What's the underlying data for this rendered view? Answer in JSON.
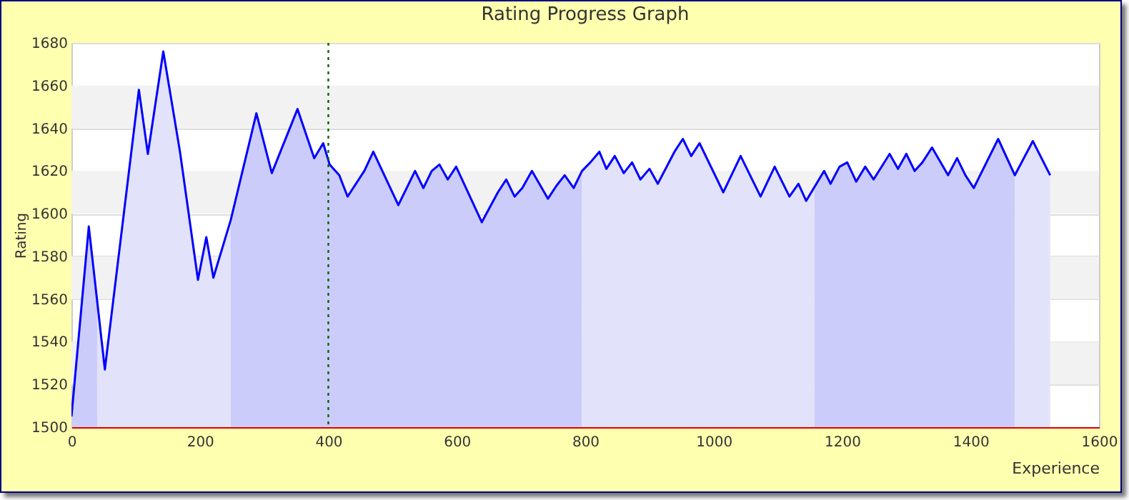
{
  "chart_data": {
    "type": "line",
    "title": "Rating Progress Graph",
    "xlabel": "Experience",
    "ylabel": "Rating",
    "xlim": [
      0,
      1600
    ],
    "xticks": [
      0,
      200,
      400,
      600,
      800,
      1000,
      1200,
      1400,
      1600
    ],
    "ylim": [
      1500,
      1680
    ],
    "yticks": [
      1500,
      1520,
      1540,
      1560,
      1580,
      1600,
      1620,
      1640,
      1660,
      1680
    ],
    "grid": "y",
    "marker": "none",
    "line_style": "solid",
    "ref_lines": [
      {
        "axis": "x",
        "value": 400,
        "color": "#006600",
        "line_style": "dotted"
      }
    ],
    "series": [
      {
        "type": "area",
        "color": "#ccccfa",
        "x": [
          0,
          27,
          40
        ],
        "values": [
          1505,
          1594,
          1559
        ]
      },
      {
        "type": "area",
        "color": "#e2e2fa",
        "x": [
          40,
          52,
          105,
          119,
          143,
          169,
          197,
          210,
          221,
          248
        ],
        "values": [
          1559,
          1527,
          1658,
          1628,
          1676,
          1629,
          1569,
          1589,
          1570,
          1597
        ]
      },
      {
        "type": "area",
        "color": "#ccccfa",
        "x": [
          248,
          288,
          312,
          352,
          378,
          392,
          402,
          417,
          430,
          456,
          470,
          509,
          535,
          548,
          561,
          573,
          586,
          599,
          639,
          664,
          677,
          690,
          702,
          717,
          742,
          755,
          768,
          782,
          795
        ],
        "values": [
          1597,
          1647,
          1619,
          1649,
          1626,
          1633,
          1623,
          1618,
          1608,
          1620,
          1629,
          1604,
          1620,
          1612,
          1620,
          1623,
          1616,
          1622,
          1596,
          1610,
          1616,
          1608,
          1612,
          1620,
          1607,
          1613,
          1618,
          1612,
          1620
        ]
      },
      {
        "type": "area",
        "color": "#e2e2fa",
        "x": [
          795,
          808,
          822,
          833,
          846,
          860,
          873,
          886,
          900,
          913,
          939,
          952,
          965,
          978,
          1015,
          1042,
          1073,
          1095,
          1118,
          1132,
          1144,
          1157
        ],
        "values": [
          1620,
          1624,
          1629,
          1621,
          1627,
          1619,
          1624,
          1616,
          1621,
          1614,
          1629,
          1635,
          1627,
          1633,
          1610,
          1627,
          1608,
          1622,
          1608,
          1614,
          1606,
          1612
        ]
      },
      {
        "type": "area",
        "color": "#ccccfa",
        "x": [
          1157,
          1172,
          1182,
          1196,
          1208,
          1222,
          1236,
          1249,
          1274,
          1287,
          1300,
          1313,
          1325,
          1340,
          1365,
          1379,
          1392,
          1405,
          1443,
          1469
        ],
        "values": [
          1612,
          1620,
          1614,
          1622,
          1624,
          1615,
          1622,
          1616,
          1628,
          1621,
          1628,
          1620,
          1624,
          1631,
          1618,
          1626,
          1618,
          1612,
          1635,
          1618
        ]
      },
      {
        "type": "area",
        "color": "#e2e2fa",
        "x": [
          1469,
          1497,
          1524
        ],
        "values": [
          1618,
          1634,
          1618
        ]
      },
      {
        "type": "line",
        "color": "#0000ff",
        "x": [
          0,
          27,
          52,
          105,
          119,
          143,
          169,
          197,
          210,
          221,
          248,
          288,
          312,
          352,
          378,
          392,
          402,
          417,
          430,
          456,
          470,
          509,
          535,
          548,
          561,
          573,
          586,
          599,
          639,
          664,
          677,
          690,
          702,
          717,
          742,
          755,
          768,
          782,
          795,
          808,
          822,
          833,
          846,
          860,
          873,
          886,
          900,
          913,
          939,
          952,
          965,
          978,
          1015,
          1042,
          1073,
          1095,
          1118,
          1132,
          1144,
          1172,
          1182,
          1196,
          1208,
          1222,
          1236,
          1249,
          1274,
          1287,
          1300,
          1313,
          1325,
          1340,
          1365,
          1379,
          1392,
          1405,
          1443,
          1469,
          1497,
          1524
        ],
        "values": [
          1505,
          1594,
          1527,
          1658,
          1628,
          1676,
          1629,
          1569,
          1589,
          1570,
          1597,
          1647,
          1619,
          1649,
          1626,
          1633,
          1623,
          1618,
          1608,
          1620,
          1629,
          1604,
          1620,
          1612,
          1620,
          1623,
          1616,
          1622,
          1596,
          1610,
          1616,
          1608,
          1612,
          1620,
          1607,
          1613,
          1618,
          1612,
          1620,
          1624,
          1629,
          1621,
          1627,
          1619,
          1624,
          1616,
          1621,
          1614,
          1629,
          1635,
          1627,
          1633,
          1610,
          1627,
          1608,
          1622,
          1608,
          1614,
          1606,
          1620,
          1614,
          1622,
          1624,
          1615,
          1622,
          1616,
          1628,
          1621,
          1628,
          1620,
          1624,
          1631,
          1618,
          1626,
          1618,
          1612,
          1635,
          1618,
          1634,
          1618
        ]
      }
    ]
  }
}
